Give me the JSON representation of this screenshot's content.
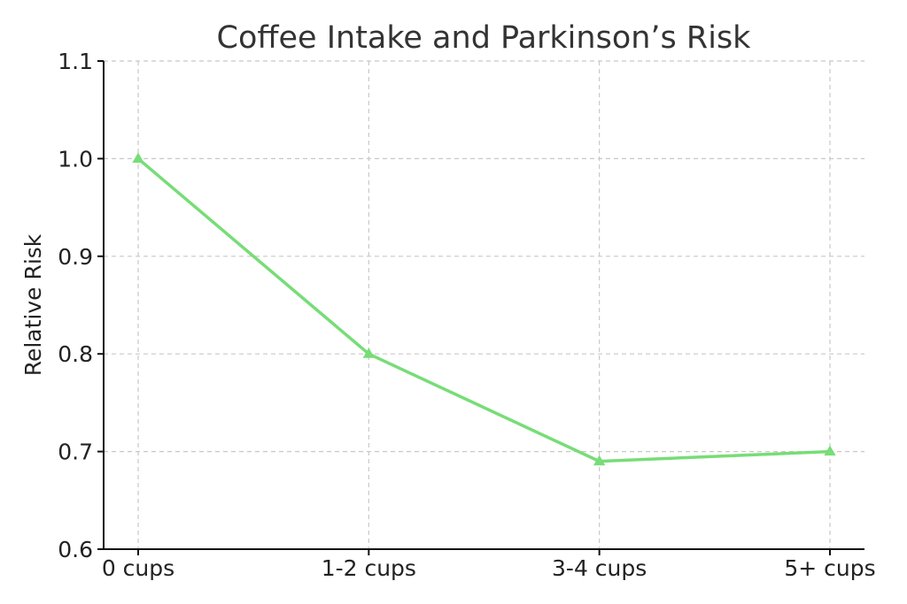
{
  "chart_data": {
    "type": "line",
    "title": "Coffee Intake and Parkinson’s Risk",
    "xlabel": "",
    "ylabel": "Relative Risk",
    "categories": [
      "0 cups",
      "1-2 cups",
      "3-4 cups",
      "5+ cups"
    ],
    "series": [
      {
        "values": [
          1.0,
          0.8,
          0.69,
          0.7
        ],
        "color": "#77dd77",
        "marker": "triangle"
      }
    ],
    "ylim": [
      0.6,
      1.1
    ],
    "yticks": [
      "0.6",
      "0.7",
      "0.8",
      "0.9",
      "1.0",
      "1.1"
    ],
    "grid": true
  }
}
